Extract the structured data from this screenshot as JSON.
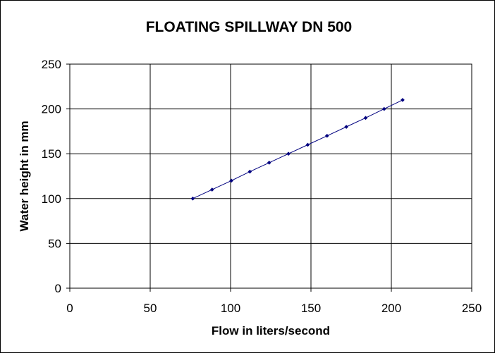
{
  "chart_data": {
    "type": "scatter",
    "title": "FLOATING SPILLWAY DN 500",
    "xlabel": "Flow in liters/second",
    "ylabel": "Water height in mm",
    "xlim": [
      0,
      250
    ],
    "ylim": [
      0,
      250
    ],
    "xticks": [
      "0",
      "50",
      "100",
      "150",
      "200",
      "250"
    ],
    "yticks": [
      "0",
      "50",
      "100",
      "150",
      "200",
      "250"
    ],
    "grid": true,
    "legend": "none",
    "series": [
      {
        "color": "#00007f",
        "x": [
          76.5,
          88.5,
          100.5,
          112,
          124,
          136,
          148,
          160,
          172,
          184,
          195.5,
          207
        ],
        "y": [
          100,
          110,
          120,
          130,
          140,
          150,
          160,
          170,
          180,
          190,
          200,
          210
        ]
      }
    ]
  }
}
